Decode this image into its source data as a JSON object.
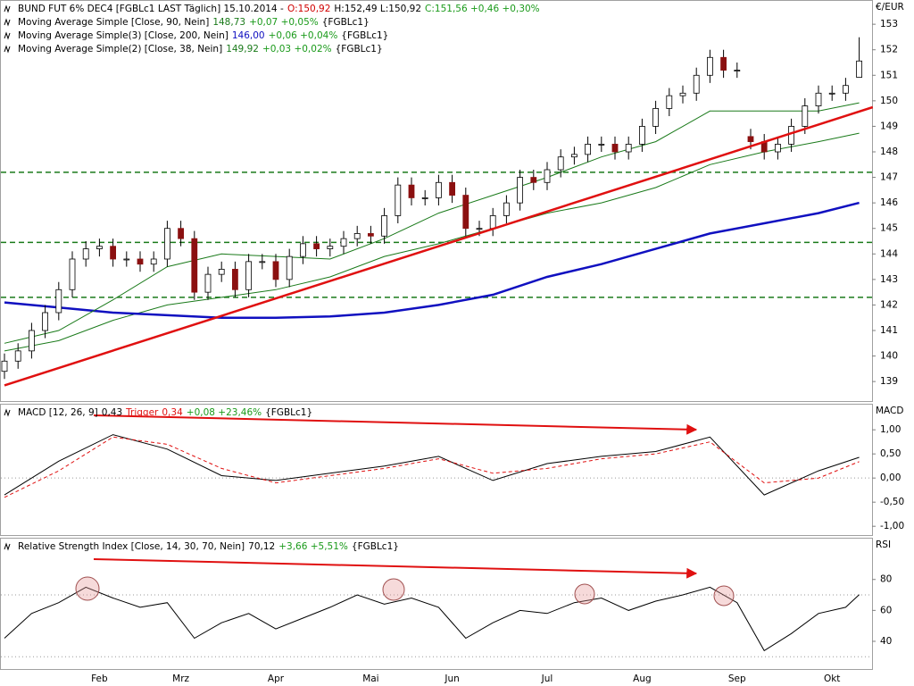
{
  "chart_data": [
    {
      "type": "candlestick",
      "header": [
        {
          "text": "BUND FUT 6% DEC4 [FGBLc1 LAST Täglich] 15.10.2014 -",
          "color": "#000000"
        },
        {
          "text": "O:150,92",
          "color": "#d00000"
        },
        {
          "text": "H:152,49 L:150,92",
          "color": "#000000"
        },
        {
          "text": "C:151,56 +0,46 +0,30%",
          "color": "#1a9a1a"
        }
      ],
      "axis_label": "€/EUR",
      "categories": [
        null,
        null,
        null,
        null,
        null,
        null,
        null,
        "Feb",
        null,
        null,
        null,
        null,
        null,
        "Mrz",
        null,
        null,
        null,
        null,
        null,
        null,
        "Apr",
        null,
        null,
        null,
        null,
        null,
        null,
        "Mai",
        null,
        null,
        null,
        null,
        null,
        "Jun",
        null,
        null,
        null,
        null,
        null,
        null,
        "Jul",
        null,
        null,
        null,
        null,
        null,
        null,
        "Aug",
        null,
        null,
        null,
        null,
        null,
        null,
        "Sep",
        null,
        null,
        null,
        null,
        null,
        null,
        "Okt",
        null,
        null
      ],
      "open": [
        139.4,
        139.8,
        140.2,
        141.0,
        141.7,
        142.6,
        143.8,
        144.2,
        144.3,
        143.8,
        143.8,
        143.6,
        143.8,
        145.0,
        144.6,
        142.5,
        143.2,
        143.4,
        142.6,
        143.7,
        143.7,
        143.0,
        143.9,
        144.4,
        144.2,
        144.3,
        144.6,
        144.8,
        144.7,
        145.5,
        146.7,
        146.2,
        146.2,
        146.8,
        146.3,
        145.0,
        145.0,
        145.5,
        146.0,
        147.0,
        146.8,
        147.3,
        147.8,
        147.9,
        148.3,
        148.3,
        148.0,
        148.3,
        149.0,
        149.7,
        150.2,
        150.3,
        151.0,
        151.7,
        151.2,
        148.6,
        148.4,
        148.0,
        148.3,
        149.0,
        149.8,
        150.3,
        150.3,
        150.92
      ],
      "high": [
        140.1,
        140.5,
        141.3,
        142.0,
        142.9,
        144.1,
        144.5,
        144.6,
        144.6,
        144.1,
        144.1,
        144.1,
        145.3,
        145.3,
        144.9,
        143.5,
        143.7,
        143.7,
        144.0,
        144.0,
        144.0,
        144.2,
        144.7,
        144.7,
        144.6,
        144.9,
        145.1,
        145.1,
        145.8,
        147.0,
        147.0,
        146.5,
        147.1,
        147.1,
        146.6,
        145.3,
        145.8,
        146.3,
        147.3,
        147.3,
        147.6,
        148.1,
        148.2,
        148.6,
        148.6,
        148.6,
        148.6,
        149.3,
        150.0,
        150.5,
        150.6,
        151.3,
        152.0,
        152.0,
        151.5,
        148.9,
        148.7,
        148.6,
        149.3,
        150.1,
        150.6,
        150.6,
        150.9,
        152.49
      ],
      "low": [
        139.1,
        139.5,
        139.9,
        140.7,
        141.4,
        142.3,
        143.5,
        143.9,
        143.5,
        143.5,
        143.3,
        143.3,
        143.5,
        144.3,
        142.2,
        142.2,
        142.9,
        142.3,
        142.3,
        143.4,
        142.7,
        142.7,
        143.6,
        143.9,
        143.9,
        144.0,
        144.3,
        144.4,
        144.4,
        145.2,
        145.9,
        145.9,
        145.9,
        146.0,
        144.7,
        144.7,
        144.7,
        145.2,
        145.7,
        146.5,
        146.5,
        147.0,
        147.5,
        147.6,
        148.0,
        147.7,
        147.7,
        148.0,
        148.7,
        149.4,
        149.9,
        150.0,
        150.7,
        150.9,
        150.9,
        148.1,
        147.7,
        147.7,
        148.0,
        148.7,
        149.5,
        150.0,
        150.0,
        150.92
      ],
      "close": [
        139.8,
        140.2,
        141.0,
        141.7,
        142.6,
        143.8,
        144.2,
        144.3,
        143.8,
        143.8,
        143.6,
        143.8,
        145.0,
        144.6,
        142.5,
        143.2,
        143.4,
        142.6,
        143.7,
        143.7,
        143.0,
        143.9,
        144.4,
        144.2,
        144.3,
        144.6,
        144.8,
        144.7,
        145.5,
        146.7,
        146.2,
        146.2,
        146.8,
        146.3,
        145.0,
        145.0,
        145.5,
        146.0,
        147.0,
        146.8,
        147.3,
        147.8,
        147.9,
        148.3,
        148.3,
        148.0,
        148.3,
        149.0,
        149.7,
        150.2,
        150.3,
        151.0,
        151.7,
        151.2,
        151.2,
        148.4,
        148.0,
        148.3,
        149.0,
        149.8,
        150.3,
        150.3,
        150.6,
        151.56
      ],
      "up_color": "#ffffff",
      "down_color": "#8b1010",
      "series": [
        {
          "name": "Moving Average Simple [Close, 90, Nein]",
          "color": "#1a7a1a",
          "last_label": "148,73",
          "change": "+0,07 +0,05%",
          "change_color": "#1a9a1a",
          "source": "{FGBLc1}",
          "x": [
            0,
            4,
            8,
            12,
            16,
            20,
            24,
            28,
            32,
            36,
            40,
            44,
            48,
            52,
            56,
            60,
            63
          ],
          "values": [
            140.2,
            140.6,
            141.4,
            142.0,
            142.3,
            142.6,
            143.1,
            143.9,
            144.4,
            145.0,
            145.6,
            146.0,
            146.6,
            147.5,
            148.0,
            148.4,
            148.73
          ]
        },
        {
          "name": "Moving Average Simple(3) [Close, 200, Nein]",
          "color": "#1010c0",
          "bold": true,
          "last_label": "146,00",
          "change": "+0,06 +0,04%",
          "change_color": "#1a9a1a",
          "source": "{FGBLc1}",
          "x": [
            0,
            4,
            8,
            12,
            16,
            20,
            24,
            28,
            32,
            36,
            40,
            44,
            48,
            52,
            56,
            60,
            63
          ],
          "values": [
            142.1,
            141.9,
            141.7,
            141.6,
            141.5,
            141.5,
            141.55,
            141.7,
            142.0,
            142.4,
            143.1,
            143.6,
            144.2,
            144.8,
            145.2,
            145.6,
            146.0
          ]
        },
        {
          "name": "Moving Average Simple(2) [Close, 38, Nein]",
          "color": "#1a7a1a",
          "last_label": "149,92",
          "change": "+0,03 +0,02%",
          "change_color": "#1a9a1a",
          "source": "{FGBLc1}",
          "x": [
            0,
            4,
            8,
            12,
            16,
            20,
            24,
            28,
            32,
            36,
            40,
            44,
            48,
            52,
            56,
            60,
            63
          ],
          "values": [
            140.5,
            141.0,
            142.2,
            143.5,
            144.0,
            143.9,
            143.8,
            144.6,
            145.6,
            146.3,
            147.0,
            147.8,
            148.4,
            149.6,
            149.6,
            149.6,
            149.92
          ]
        }
      ],
      "hlines": [
        147.2,
        144.45,
        142.3
      ],
      "hline_color": "#1a7a1a",
      "hline_style": "dashed",
      "trendline": {
        "x": [
          0,
          64
        ],
        "values": [
          138.85,
          149.75
        ],
        "color": "#e01010"
      },
      "ylim": [
        138.2,
        153.95
      ],
      "yticks": [
        139,
        140,
        141,
        142,
        143,
        144,
        145,
        146,
        147,
        148,
        149,
        150,
        151,
        152,
        153
      ]
    },
    {
      "type": "line",
      "axis_label": "MACD",
      "source": "{FGBLc1}",
      "series": [
        {
          "name": "MACD [12, 26, 9]",
          "color": "#000000",
          "last_label": "0,43",
          "x": [
            0,
            4,
            8,
            12,
            16,
            20,
            24,
            28,
            32,
            36,
            40,
            44,
            48,
            52,
            56,
            60,
            63
          ],
          "values": [
            -0.35,
            0.35,
            0.9,
            0.6,
            0.05,
            -0.05,
            0.1,
            0.25,
            0.45,
            -0.05,
            0.3,
            0.45,
            0.55,
            0.85,
            -0.35,
            0.15,
            0.43
          ]
        },
        {
          "name": "Trigger",
          "color": "#e01010",
          "dashed": true,
          "last_label": "0,34",
          "change": "+0,08 +23,46%",
          "change_color": "#1a9a1a",
          "x": [
            0,
            4,
            8,
            12,
            16,
            20,
            24,
            28,
            32,
            36,
            40,
            44,
            48,
            52,
            56,
            60,
            63
          ],
          "values": [
            -0.4,
            0.15,
            0.85,
            0.7,
            0.2,
            -0.1,
            0.05,
            0.2,
            0.4,
            0.1,
            0.2,
            0.4,
            0.5,
            0.75,
            -0.1,
            0.0,
            0.34
          ]
        }
      ],
      "hlines": [
        0
      ],
      "hline_color": "#999999",
      "hline_style": "dotted",
      "ylim": [
        -1.2,
        1.54
      ],
      "yticks": [
        {
          "value": 1,
          "label": "1,00"
        },
        {
          "value": 0.5,
          "label": "0,50"
        },
        {
          "value": 0,
          "label": "0,00"
        },
        {
          "value": -0.5,
          "label": "-0,50"
        },
        {
          "value": -1,
          "label": "-1,00"
        }
      ]
    },
    {
      "type": "line",
      "axis_label": "RSI",
      "source": "{FGBLc1}",
      "series": [
        {
          "name": "Relative Strength Index [Close, 14, 30, 70, Nein]",
          "color": "#000000",
          "last_label": "70,12",
          "change": "+3,66 +5,51%",
          "change_color": "#1a9a1a",
          "x": [
            0,
            2,
            4,
            6,
            8,
            10,
            12,
            14,
            16,
            18,
            20,
            22,
            24,
            26,
            28,
            30,
            32,
            34,
            36,
            38,
            40,
            42,
            44,
            46,
            48,
            50,
            52,
            54,
            56,
            58,
            60,
            62,
            63
          ],
          "values": [
            42,
            58,
            65,
            75,
            68,
            62,
            65,
            42,
            52,
            58,
            48,
            55,
            62,
            70,
            64,
            68,
            62,
            42,
            52,
            60,
            58,
            65,
            68,
            60,
            66,
            70,
            75,
            65,
            34,
            45,
            58,
            62,
            70.12
          ]
        }
      ],
      "hlines": [
        70,
        30
      ],
      "hline_color": "#999999",
      "hline_style": "dotted",
      "ylim": [
        21.5,
        107
      ],
      "yticks": [
        40,
        60,
        80
      ]
    }
  ]
}
